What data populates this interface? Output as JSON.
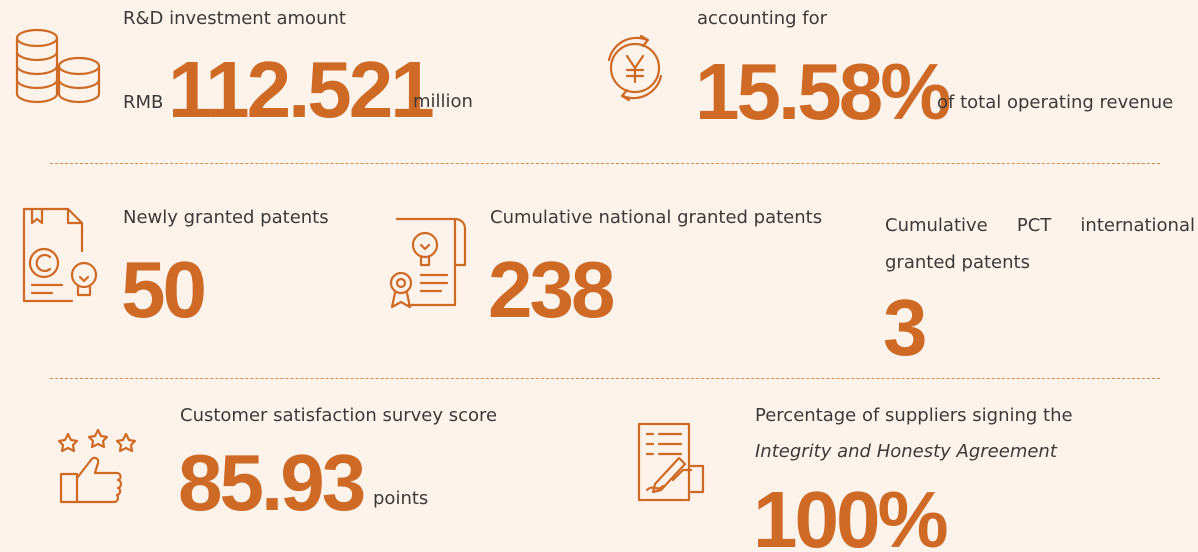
{
  "items": [
    {
      "label": "R&D investment amount",
      "prefix": "RMB",
      "value": "112.521",
      "suffix": "million"
    },
    {
      "label": "accounting for",
      "value": "15.58%",
      "suffix": "of total operating revenue"
    },
    {
      "label": "Newly granted patents",
      "value": "50"
    },
    {
      "label": "Cumulative national granted patents",
      "value": "238"
    },
    {
      "label": "Cumulative PCT international granted patents",
      "value": "3"
    },
    {
      "label": "Customer satisfaction survey score",
      "value": "85.93",
      "suffix": "points"
    },
    {
      "label": "Percentage of suppliers signing the",
      "label_italic": "Integrity and Honesty Agreement",
      "value": "100%"
    }
  ]
}
